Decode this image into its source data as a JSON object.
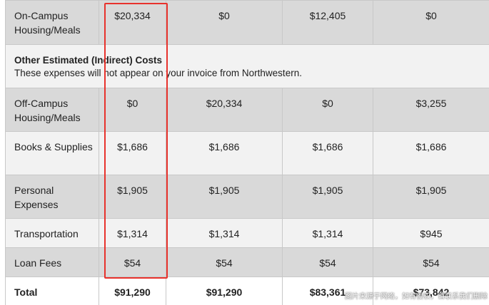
{
  "rows": {
    "housing": {
      "label": "On-Campus Housing/Meals",
      "values": [
        "$20,334",
        "$0",
        "$12,405",
        "$0"
      ]
    },
    "section": {
      "title": "Other Estimated (Indirect) Costs",
      "subtitle": "These expenses will not appear on your invoice from Northwestern."
    },
    "offcampus": {
      "label": "Off-Campus Housing/Meals",
      "values": [
        "$0",
        "$20,334",
        "$0",
        "$3,255"
      ]
    },
    "books": {
      "label": "Books & Supplies",
      "values": [
        "$1,686",
        "$1,686",
        "$1,686",
        "$1,686"
      ]
    },
    "personal": {
      "label": "Personal Expenses",
      "values": [
        "$1,905",
        "$1,905",
        "$1,905",
        "$1,905"
      ]
    },
    "transport": {
      "label": "Transportation",
      "values": [
        "$1,314",
        "$1,314",
        "$1,314",
        "$945"
      ]
    },
    "loan": {
      "label": "Loan Fees",
      "values": [
        "$54",
        "$54",
        "$54",
        "$54"
      ]
    },
    "total": {
      "label": "Total",
      "values": [
        "$91,290",
        "$91,290",
        "$83,361",
        "$73,842"
      ]
    }
  },
  "annotation": {
    "color": "#e8322c"
  },
  "watermark": "图片来源于网络，如有侵权，请联系我们删除"
}
